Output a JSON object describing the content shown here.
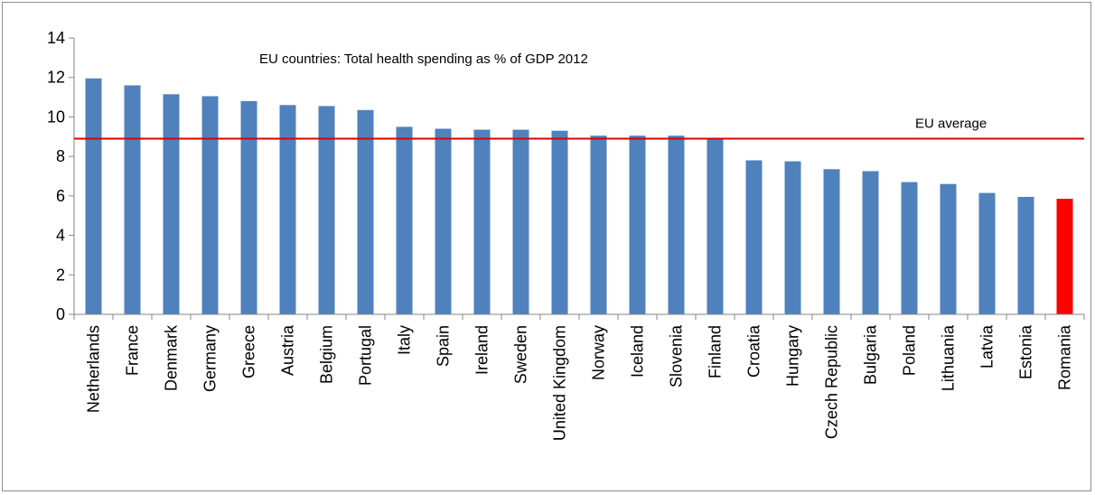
{
  "chart_data": {
    "type": "bar",
    "title": "EU countries: Total health spending as % of GDP 2012",
    "xlabel": "",
    "ylabel": "",
    "ylim": [
      0,
      14
    ],
    "y_ticks": [
      0,
      2,
      4,
      6,
      8,
      10,
      12,
      14
    ],
    "grid": false,
    "legend": "none",
    "categories": [
      "Netherlands",
      "France",
      "Denmark",
      "Germany",
      "Greece",
      "Austria",
      "Belgium",
      "Portugal",
      "Italy",
      "Spain",
      "Ireland",
      "Sweden",
      "United Kingdom",
      "Norway",
      "Iceland",
      "Slovenia",
      "Finland",
      "Croatia",
      "Hungary",
      "Czech Republic",
      "Bulgaria",
      "Poland",
      "Lithuania",
      "Latvia",
      "Estonia",
      "Romania"
    ],
    "values": [
      11.95,
      11.6,
      11.15,
      11.05,
      10.8,
      10.6,
      10.55,
      10.35,
      9.5,
      9.4,
      9.35,
      9.35,
      9.3,
      9.05,
      9.05,
      9.05,
      8.9,
      7.8,
      7.75,
      7.35,
      7.25,
      6.7,
      6.6,
      6.15,
      5.95,
      5.85
    ],
    "reference_line": {
      "label": "EU average",
      "value": 8.9,
      "color": "#e00000"
    },
    "colors": {
      "bar": "#4f81bd",
      "highlight": "#ff0000",
      "highlight_category": "Romania"
    }
  }
}
